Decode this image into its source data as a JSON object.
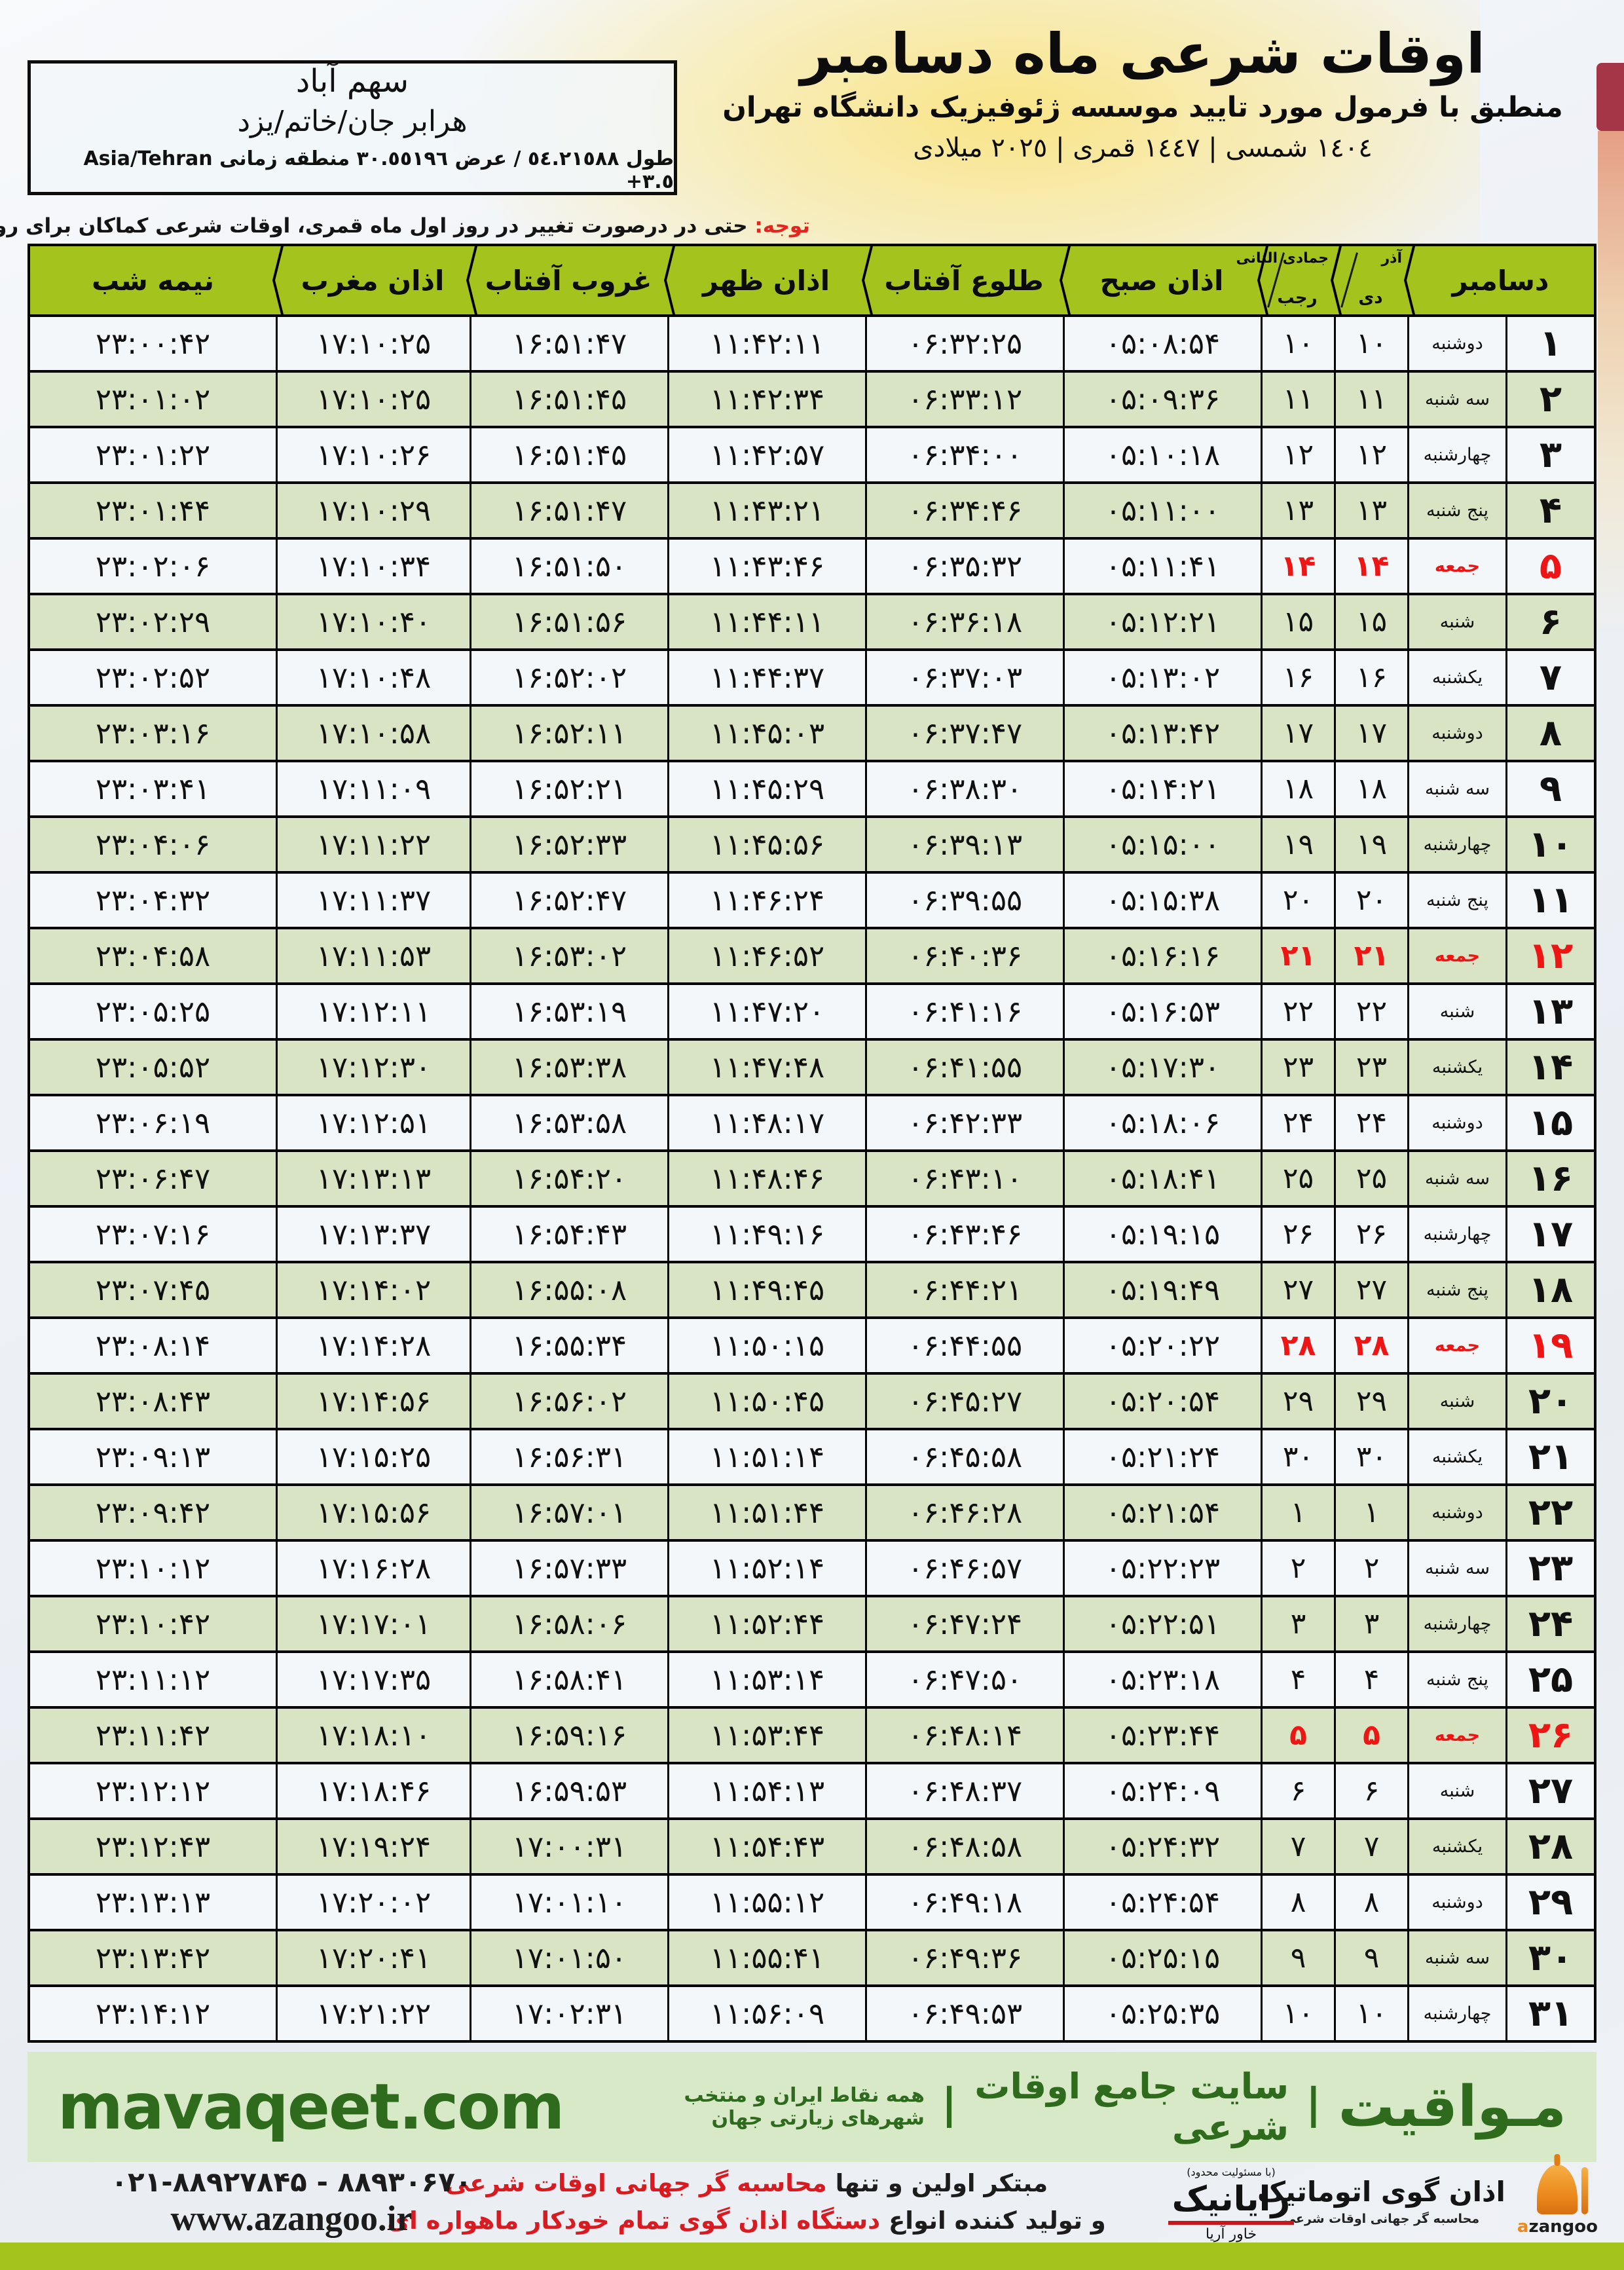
{
  "location_box": {
    "line1": "سهم آباد",
    "line2": "هرابر جان/خاتم/یزد",
    "coords_rtl": "طول ٥٤.٢١٥٨٨ / عرض ٣٠.٥٥١٩٦ منطقه زمانی",
    "coords_ltr": "Asia/Tehran +٣.٥"
  },
  "header": {
    "title": "اوقات شرعی ماه دسامبر",
    "subtitle": "منطبق با فرمول مورد تایید موسسه ژئوفیزیک دانشگاه تهران",
    "years": "١٤٠٤ شمسی | ١٤٤٧ قمری | ٢٠٢٥ میلادی"
  },
  "notice": {
    "label": "توجه:",
    "text": " حتی در درصورت تغییر در روز اول ماه قمری، اوقات شرعی کماکان برای روزهای شمسی و میلادی معتبر است."
  },
  "table": {
    "headers": {
      "december": "دسامبر",
      "persian_month_top": "آذر",
      "persian_month_bottom": "دی",
      "hijri_month_top": "جمادی الثانی",
      "hijri_month_bottom": "رجب",
      "sobh": "اذان صبح",
      "sunrise": "طلوع آفتاب",
      "zohr": "اذان ظهر",
      "sunset": "غروب آفتاب",
      "maghreb": "اذان مغرب",
      "midnight": "نیمه شب"
    },
    "rows": [
      {
        "day": "۱",
        "weekday": "دوشنبه",
        "dey": "۱۰",
        "rajab": "۱۰",
        "sobh": "۰۵:۰۸:۵۴",
        "tolu": "۰۶:۳۲:۲۵",
        "zohr": "۱۱:۴۲:۱۱",
        "ghorub": "۱۶:۵۱:۴۷",
        "maghreb": "۱۷:۱۰:۲۵",
        "nimeshab": "۲۳:۰۰:۴۲",
        "friday": false
      },
      {
        "day": "۲",
        "weekday": "سه شنبه",
        "dey": "۱۱",
        "rajab": "۱۱",
        "sobh": "۰۵:۰۹:۳۶",
        "tolu": "۰۶:۳۳:۱۲",
        "zohr": "۱۱:۴۲:۳۴",
        "ghorub": "۱۶:۵۱:۴۵",
        "maghreb": "۱۷:۱۰:۲۵",
        "nimeshab": "۲۳:۰۱:۰۲",
        "friday": false
      },
      {
        "day": "۳",
        "weekday": "چهارشنبه",
        "dey": "۱۲",
        "rajab": "۱۲",
        "sobh": "۰۵:۱۰:۱۸",
        "tolu": "۰۶:۳۴:۰۰",
        "zohr": "۱۱:۴۲:۵۷",
        "ghorub": "۱۶:۵۱:۴۵",
        "maghreb": "۱۷:۱۰:۲۶",
        "nimeshab": "۲۳:۰۱:۲۲",
        "friday": false
      },
      {
        "day": "۴",
        "weekday": "پنج شنبه",
        "dey": "۱۳",
        "rajab": "۱۳",
        "sobh": "۰۵:۱۱:۰۰",
        "tolu": "۰۶:۳۴:۴۶",
        "zohr": "۱۱:۴۳:۲۱",
        "ghorub": "۱۶:۵۱:۴۷",
        "maghreb": "۱۷:۱۰:۲۹",
        "nimeshab": "۲۳:۰۱:۴۴",
        "friday": false
      },
      {
        "day": "۵",
        "weekday": "جمعه",
        "dey": "۱۴",
        "rajab": "۱۴",
        "sobh": "۰۵:۱۱:۴۱",
        "tolu": "۰۶:۳۵:۳۲",
        "zohr": "۱۱:۴۳:۴۶",
        "ghorub": "۱۶:۵۱:۵۰",
        "maghreb": "۱۷:۱۰:۳۴",
        "nimeshab": "۲۳:۰۲:۰۶",
        "friday": true
      },
      {
        "day": "۶",
        "weekday": "شنبه",
        "dey": "۱۵",
        "rajab": "۱۵",
        "sobh": "۰۵:۱۲:۲۱",
        "tolu": "۰۶:۳۶:۱۸",
        "zohr": "۱۱:۴۴:۱۱",
        "ghorub": "۱۶:۵۱:۵۶",
        "maghreb": "۱۷:۱۰:۴۰",
        "nimeshab": "۲۳:۰۲:۲۹",
        "friday": false
      },
      {
        "day": "۷",
        "weekday": "یکشنبه",
        "dey": "۱۶",
        "rajab": "۱۶",
        "sobh": "۰۵:۱۳:۰۲",
        "tolu": "۰۶:۳۷:۰۳",
        "zohr": "۱۱:۴۴:۳۷",
        "ghorub": "۱۶:۵۲:۰۲",
        "maghreb": "۱۷:۱۰:۴۸",
        "nimeshab": "۲۳:۰۲:۵۲",
        "friday": false
      },
      {
        "day": "۸",
        "weekday": "دوشنبه",
        "dey": "۱۷",
        "rajab": "۱۷",
        "sobh": "۰۵:۱۳:۴۲",
        "tolu": "۰۶:۳۷:۴۷",
        "zohr": "۱۱:۴۵:۰۳",
        "ghorub": "۱۶:۵۲:۱۱",
        "maghreb": "۱۷:۱۰:۵۸",
        "nimeshab": "۲۳:۰۳:۱۶",
        "friday": false
      },
      {
        "day": "۹",
        "weekday": "سه شنبه",
        "dey": "۱۸",
        "rajab": "۱۸",
        "sobh": "۰۵:۱۴:۲۱",
        "tolu": "۰۶:۳۸:۳۰",
        "zohr": "۱۱:۴۵:۲۹",
        "ghorub": "۱۶:۵۲:۲۱",
        "maghreb": "۱۷:۱۱:۰۹",
        "nimeshab": "۲۳:۰۳:۴۱",
        "friday": false
      },
      {
        "day": "۱۰",
        "weekday": "چهارشنبه",
        "dey": "۱۹",
        "rajab": "۱۹",
        "sobh": "۰۵:۱۵:۰۰",
        "tolu": "۰۶:۳۹:۱۳",
        "zohr": "۱۱:۴۵:۵۶",
        "ghorub": "۱۶:۵۲:۳۳",
        "maghreb": "۱۷:۱۱:۲۲",
        "nimeshab": "۲۳:۰۴:۰۶",
        "friday": false
      },
      {
        "day": "۱۱",
        "weekday": "پنج شنبه",
        "dey": "۲۰",
        "rajab": "۲۰",
        "sobh": "۰۵:۱۵:۳۸",
        "tolu": "۰۶:۳۹:۵۵",
        "zohr": "۱۱:۴۶:۲۴",
        "ghorub": "۱۶:۵۲:۴۷",
        "maghreb": "۱۷:۱۱:۳۷",
        "nimeshab": "۲۳:۰۴:۳۲",
        "friday": false
      },
      {
        "day": "۱۲",
        "weekday": "جمعه",
        "dey": "۲۱",
        "rajab": "۲۱",
        "sobh": "۰۵:۱۶:۱۶",
        "tolu": "۰۶:۴۰:۳۶",
        "zohr": "۱۱:۴۶:۵۲",
        "ghorub": "۱۶:۵۳:۰۲",
        "maghreb": "۱۷:۱۱:۵۳",
        "nimeshab": "۲۳:۰۴:۵۸",
        "friday": true
      },
      {
        "day": "۱۳",
        "weekday": "شنبه",
        "dey": "۲۲",
        "rajab": "۲۲",
        "sobh": "۰۵:۱۶:۵۳",
        "tolu": "۰۶:۴۱:۱۶",
        "zohr": "۱۱:۴۷:۲۰",
        "ghorub": "۱۶:۵۳:۱۹",
        "maghreb": "۱۷:۱۲:۱۱",
        "nimeshab": "۲۳:۰۵:۲۵",
        "friday": false
      },
      {
        "day": "۱۴",
        "weekday": "یکشنبه",
        "dey": "۲۳",
        "rajab": "۲۳",
        "sobh": "۰۵:۱۷:۳۰",
        "tolu": "۰۶:۴۱:۵۵",
        "zohr": "۱۱:۴۷:۴۸",
        "ghorub": "۱۶:۵۳:۳۸",
        "maghreb": "۱۷:۱۲:۳۰",
        "nimeshab": "۲۳:۰۵:۵۲",
        "friday": false
      },
      {
        "day": "۱۵",
        "weekday": "دوشنبه",
        "dey": "۲۴",
        "rajab": "۲۴",
        "sobh": "۰۵:۱۸:۰۶",
        "tolu": "۰۶:۴۲:۳۳",
        "zohr": "۱۱:۴۸:۱۷",
        "ghorub": "۱۶:۵۳:۵۸",
        "maghreb": "۱۷:۱۲:۵۱",
        "nimeshab": "۲۳:۰۶:۱۹",
        "friday": false
      },
      {
        "day": "۱۶",
        "weekday": "سه شنبه",
        "dey": "۲۵",
        "rajab": "۲۵",
        "sobh": "۰۵:۱۸:۴۱",
        "tolu": "۰۶:۴۳:۱۰",
        "zohr": "۱۱:۴۸:۴۶",
        "ghorub": "۱۶:۵۴:۲۰",
        "maghreb": "۱۷:۱۳:۱۳",
        "nimeshab": "۲۳:۰۶:۴۷",
        "friday": false
      },
      {
        "day": "۱۷",
        "weekday": "چهارشنبه",
        "dey": "۲۶",
        "rajab": "۲۶",
        "sobh": "۰۵:۱۹:۱۵",
        "tolu": "۰۶:۴۳:۴۶",
        "zohr": "۱۱:۴۹:۱۶",
        "ghorub": "۱۶:۵۴:۴۳",
        "maghreb": "۱۷:۱۳:۳۷",
        "nimeshab": "۲۳:۰۷:۱۶",
        "friday": false
      },
      {
        "day": "۱۸",
        "weekday": "پنج شنبه",
        "dey": "۲۷",
        "rajab": "۲۷",
        "sobh": "۰۵:۱۹:۴۹",
        "tolu": "۰۶:۴۴:۲۱",
        "zohr": "۱۱:۴۹:۴۵",
        "ghorub": "۱۶:۵۵:۰۸",
        "maghreb": "۱۷:۱۴:۰۲",
        "nimeshab": "۲۳:۰۷:۴۵",
        "friday": false
      },
      {
        "day": "۱۹",
        "weekday": "جمعه",
        "dey": "۲۸",
        "rajab": "۲۸",
        "sobh": "۰۵:۲۰:۲۲",
        "tolu": "۰۶:۴۴:۵۵",
        "zohr": "۱۱:۵۰:۱۵",
        "ghorub": "۱۶:۵۵:۳۴",
        "maghreb": "۱۷:۱۴:۲۸",
        "nimeshab": "۲۳:۰۸:۱۴",
        "friday": true
      },
      {
        "day": "۲۰",
        "weekday": "شنبه",
        "dey": "۲۹",
        "rajab": "۲۹",
        "sobh": "۰۵:۲۰:۵۴",
        "tolu": "۰۶:۴۵:۲۷",
        "zohr": "۱۱:۵۰:۴۵",
        "ghorub": "۱۶:۵۶:۰۲",
        "maghreb": "۱۷:۱۴:۵۶",
        "nimeshab": "۲۳:۰۸:۴۳",
        "friday": false
      },
      {
        "day": "۲۱",
        "weekday": "یکشنبه",
        "dey": "۳۰",
        "rajab": "۳۰",
        "sobh": "۰۵:۲۱:۲۴",
        "tolu": "۰۶:۴۵:۵۸",
        "zohr": "۱۱:۵۱:۱۴",
        "ghorub": "۱۶:۵۶:۳۱",
        "maghreb": "۱۷:۱۵:۲۵",
        "nimeshab": "۲۳:۰۹:۱۳",
        "friday": false
      },
      {
        "day": "۲۲",
        "weekday": "دوشنبه",
        "dey": "۱",
        "rajab": "۱",
        "sobh": "۰۵:۲۱:۵۴",
        "tolu": "۰۶:۴۶:۲۸",
        "zohr": "۱۱:۵۱:۴۴",
        "ghorub": "۱۶:۵۷:۰۱",
        "maghreb": "۱۷:۱۵:۵۶",
        "nimeshab": "۲۳:۰۹:۴۲",
        "friday": false
      },
      {
        "day": "۲۳",
        "weekday": "سه شنبه",
        "dey": "۲",
        "rajab": "۲",
        "sobh": "۰۵:۲۲:۲۳",
        "tolu": "۰۶:۴۶:۵۷",
        "zohr": "۱۱:۵۲:۱۴",
        "ghorub": "۱۶:۵۷:۳۳",
        "maghreb": "۱۷:۱۶:۲۸",
        "nimeshab": "۲۳:۱۰:۱۲",
        "friday": false
      },
      {
        "day": "۲۴",
        "weekday": "چهارشنبه",
        "dey": "۳",
        "rajab": "۳",
        "sobh": "۰۵:۲۲:۵۱",
        "tolu": "۰۶:۴۷:۲۴",
        "zohr": "۱۱:۵۲:۴۴",
        "ghorub": "۱۶:۵۸:۰۶",
        "maghreb": "۱۷:۱۷:۰۱",
        "nimeshab": "۲۳:۱۰:۴۲",
        "friday": false
      },
      {
        "day": "۲۵",
        "weekday": "پنج شنبه",
        "dey": "۴",
        "rajab": "۴",
        "sobh": "۰۵:۲۳:۱۸",
        "tolu": "۰۶:۴۷:۵۰",
        "zohr": "۱۱:۵۳:۱۴",
        "ghorub": "۱۶:۵۸:۴۱",
        "maghreb": "۱۷:۱۷:۳۵",
        "nimeshab": "۲۳:۱۱:۱۲",
        "friday": false
      },
      {
        "day": "۲۶",
        "weekday": "جمعه",
        "dey": "۵",
        "rajab": "۵",
        "sobh": "۰۵:۲۳:۴۴",
        "tolu": "۰۶:۴۸:۱۴",
        "zohr": "۱۱:۵۳:۴۴",
        "ghorub": "۱۶:۵۹:۱۶",
        "maghreb": "۱۷:۱۸:۱۰",
        "nimeshab": "۲۳:۱۱:۴۲",
        "friday": true
      },
      {
        "day": "۲۷",
        "weekday": "شنبه",
        "dey": "۶",
        "rajab": "۶",
        "sobh": "۰۵:۲۴:۰۹",
        "tolu": "۰۶:۴۸:۳۷",
        "zohr": "۱۱:۵۴:۱۳",
        "ghorub": "۱۶:۵۹:۵۳",
        "maghreb": "۱۷:۱۸:۴۶",
        "nimeshab": "۲۳:۱۲:۱۲",
        "friday": false
      },
      {
        "day": "۲۸",
        "weekday": "یکشنبه",
        "dey": "۷",
        "rajab": "۷",
        "sobh": "۰۵:۲۴:۳۲",
        "tolu": "۰۶:۴۸:۵۸",
        "zohr": "۱۱:۵۴:۴۳",
        "ghorub": "۱۷:۰۰:۳۱",
        "maghreb": "۱۷:۱۹:۲۴",
        "nimeshab": "۲۳:۱۲:۴۳",
        "friday": false
      },
      {
        "day": "۲۹",
        "weekday": "دوشنبه",
        "dey": "۸",
        "rajab": "۸",
        "sobh": "۰۵:۲۴:۵۴",
        "tolu": "۰۶:۴۹:۱۸",
        "zohr": "۱۱:۵۵:۱۲",
        "ghorub": "۱۷:۰۱:۱۰",
        "maghreb": "۱۷:۲۰:۰۲",
        "nimeshab": "۲۳:۱۳:۱۳",
        "friday": false
      },
      {
        "day": "۳۰",
        "weekday": "سه شنبه",
        "dey": "۹",
        "rajab": "۹",
        "sobh": "۰۵:۲۵:۱۵",
        "tolu": "۰۶:۴۹:۳۶",
        "zohr": "۱۱:۵۵:۴۱",
        "ghorub": "۱۷:۰۱:۵۰",
        "maghreb": "۱۷:۲۰:۴۱",
        "nimeshab": "۲۳:۱۳:۴۲",
        "friday": false
      },
      {
        "day": "۳۱",
        "weekday": "چهارشنبه",
        "dey": "۱۰",
        "rajab": "۱۰",
        "sobh": "۰۵:۲۵:۳۵",
        "tolu": "۰۶:۴۹:۵۳",
        "zohr": "۱۱:۵۶:۰۹",
        "ghorub": "۱۷:۰۲:۳۱",
        "maghreb": "۱۷:۲۱:۲۲",
        "nimeshab": "۲۳:۱۴:۱۲",
        "friday": false
      }
    ]
  },
  "banner": {
    "site_name": "مـواقیت",
    "sep": "|",
    "site_desc": "سایت جامع اوقات شرعی",
    "site_desc2": "همه نقاط ایران و منتخب شهرهای زیارتی جهان",
    "domain": "mavaqeet.com"
  },
  "footer": {
    "line1_black": "مبتکر اولین و تنها ",
    "line1_red": "محاسبه گر جهانی اوقات شرعی",
    "line2_black": "و تولید کننده انواع ",
    "line2_red": "دستگاه اذان گوی تمام خودکار ماهواره ای",
    "phone": "۰۲۱-۸۸۹۲۷۸۴۵ - ۸۸۹۳۰۶۷۰",
    "website": "www.azangoo.ir",
    "rayanik_note": "(با مسئولیت محدود)",
    "rayanik_name": "رایانیک",
    "rayanik_sub": "خاور آریا",
    "azangoo_fa": "اذان گوی اتوماتیک",
    "azangoo_tag": "محاسبه گر جهانی اوقات شرعی",
    "azangoo_en_a": "a",
    "azangoo_en_rest": "zangoo"
  },
  "colors": {
    "header_green": "#a4c31d",
    "row_green": "#d9e4c4",
    "row_light": "#f4f7f9",
    "friday_red": "#ee1515",
    "banner_bg": "#d8e9c8",
    "banner_text_green": "#2e6b1d",
    "bottom_bar_green": "#a4c31d",
    "notice_red": "#e8231d",
    "logo_orange": "#ec8a1e"
  }
}
